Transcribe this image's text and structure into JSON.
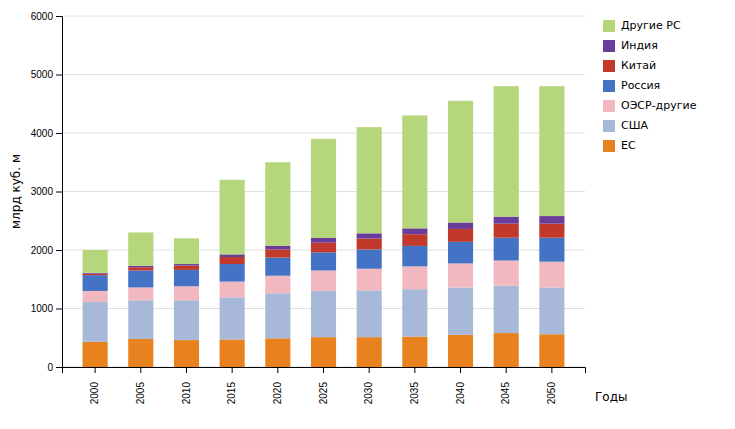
{
  "chart_data": {
    "type": "bar",
    "stacked": true,
    "categories": [
      "2000",
      "2005",
      "2010",
      "2015",
      "2020",
      "2025",
      "2030",
      "2035",
      "2040",
      "2045",
      "2050"
    ],
    "series": [
      {
        "name": "ЕС",
        "color": "#e8821e",
        "values": [
          430,
          480,
          460,
          470,
          490,
          510,
          510,
          520,
          550,
          580,
          560
        ]
      },
      {
        "name": "США",
        "color": "#a8b8d8",
        "values": [
          680,
          660,
          680,
          720,
          770,
          790,
          800,
          810,
          810,
          810,
          800
        ]
      },
      {
        "name": "ОЭСР-другие",
        "color": "#f2b8c0",
        "values": [
          190,
          220,
          240,
          270,
          300,
          350,
          370,
          390,
          410,
          430,
          440
        ]
      },
      {
        "name": "Россия",
        "color": "#4472c4",
        "values": [
          270,
          290,
          280,
          300,
          310,
          310,
          330,
          350,
          370,
          390,
          410
        ]
      },
      {
        "name": "Китай",
        "color": "#c0392b",
        "values": [
          25,
          55,
          75,
          120,
          140,
          165,
          185,
          200,
          220,
          240,
          240
        ]
      },
      {
        "name": "Индия",
        "color": "#6a3d9a",
        "values": [
          15,
          25,
          25,
          45,
          60,
          80,
          90,
          100,
          110,
          120,
          130
        ]
      },
      {
        "name": "Другие РС",
        "color": "#b5d67a",
        "values": [
          390,
          570,
          440,
          1275,
          1430,
          1695,
          1815,
          1930,
          2080,
          2230,
          2220
        ]
      }
    ],
    "ylabel": "млрд куб. м",
    "xlabel": "Годы",
    "ylim": [
      0,
      6000
    ],
    "yticks": [
      0,
      1000,
      2000,
      3000,
      4000,
      5000,
      6000
    ],
    "grid": true,
    "legend": "right"
  }
}
